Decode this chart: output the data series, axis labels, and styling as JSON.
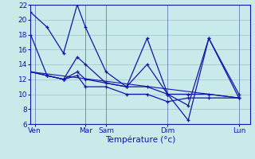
{
  "xlabel": "Température (°c)",
  "ylim": [
    6,
    22
  ],
  "xlim": [
    0,
    16
  ],
  "bg_color": "#c8eaea",
  "line_color": "#1414aa",
  "grid_color": "#a0cccc",
  "xtick_positions": [
    0.3,
    4,
    5.5,
    10,
    15.2
  ],
  "xtick_labels": [
    "Ven",
    "Mar",
    "Sam",
    "Dim",
    "Lun"
  ],
  "ytick_positions": [
    6,
    8,
    10,
    12,
    14,
    16,
    18,
    20,
    22
  ],
  "vline_positions": [
    0.3,
    4,
    5.5,
    10,
    15.2
  ],
  "series": [
    {
      "x": [
        0,
        1.2,
        2.4,
        3.4,
        4.0,
        5.5,
        7.0,
        8.5,
        10.0,
        11.5,
        13.0,
        15.2
      ],
      "y": [
        21,
        19,
        15.5,
        22,
        19,
        13,
        11,
        17.5,
        10,
        8.5,
        17.5,
        10
      ]
    },
    {
      "x": [
        0,
        1.2,
        2.4,
        3.4,
        4.0,
        5.5,
        7.0,
        8.5,
        10.0,
        11.5,
        13.0,
        15.2
      ],
      "y": [
        18,
        12.5,
        12,
        15,
        14,
        11.5,
        11,
        14,
        10,
        6.5,
        17.5,
        9.5
      ]
    },
    {
      "x": [
        0,
        1.2,
        2.4,
        3.4,
        4.0,
        5.5,
        7.0,
        8.5,
        10.0,
        11.5,
        13.0,
        15.2
      ],
      "y": [
        13,
        12.5,
        12,
        13,
        12,
        11.5,
        11,
        11,
        10,
        10,
        10,
        9.5
      ]
    },
    {
      "x": [
        0,
        1.2,
        2.4,
        3.4,
        4.0,
        5.5,
        7.0,
        8.5,
        10.0,
        11.5,
        13.0,
        15.2
      ],
      "y": [
        13,
        12.5,
        12,
        12.5,
        11,
        11,
        10,
        10,
        9,
        9.5,
        9.5,
        9.5
      ]
    },
    {
      "x": [
        0,
        15.2
      ],
      "y": [
        13,
        9.5
      ],
      "no_marker": true
    }
  ]
}
